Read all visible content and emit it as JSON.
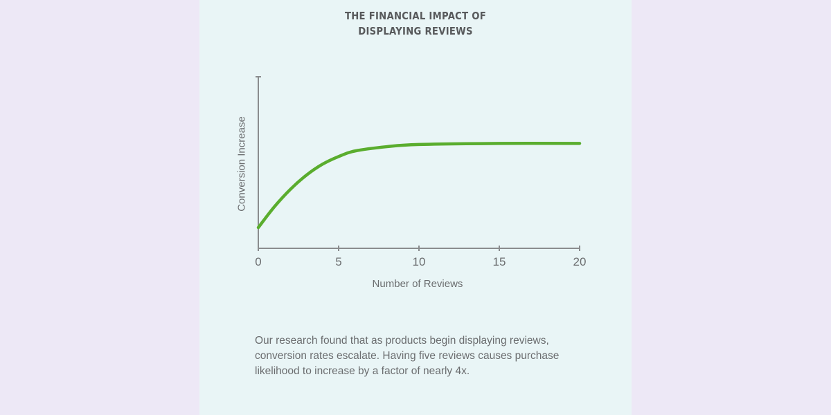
{
  "colors": {
    "page_bg": "#ede8f6",
    "panel_bg": "#e9f5f6",
    "line": "#5aad2e",
    "axis": "#8a8c8e",
    "text": "#6b6d6f",
    "title": "#585a5c"
  },
  "title": {
    "line1": "THE FINANCIAL IMPACT OF",
    "line2": "DISPLAYING REVIEWS"
  },
  "description": "Our research found that as products begin displaying reviews, conversion rates escalate. Having five reviews causes purchase likelihood to increase by a factor of nearly 4x.",
  "chart_data": {
    "type": "line",
    "title": "THE FINANCIAL IMPACT OF DISPLAYING REVIEWS",
    "xlabel": "Number of Reviews",
    "ylabel": "Conversion Increase",
    "xticks": [
      "0",
      "5",
      "10",
      "15",
      "20"
    ],
    "xlim": [
      0,
      20
    ],
    "ylim": [
      0,
      100
    ],
    "grid": false,
    "legend": null,
    "series": [
      {
        "name": "Conversion Increase",
        "x": [
          0,
          1,
          2,
          3,
          4,
          5,
          6,
          8,
          10,
          15,
          20
        ],
        "values": [
          19,
          38,
          54,
          67,
          77,
          84,
          89,
          93,
          95,
          96,
          96
        ]
      }
    ]
  }
}
